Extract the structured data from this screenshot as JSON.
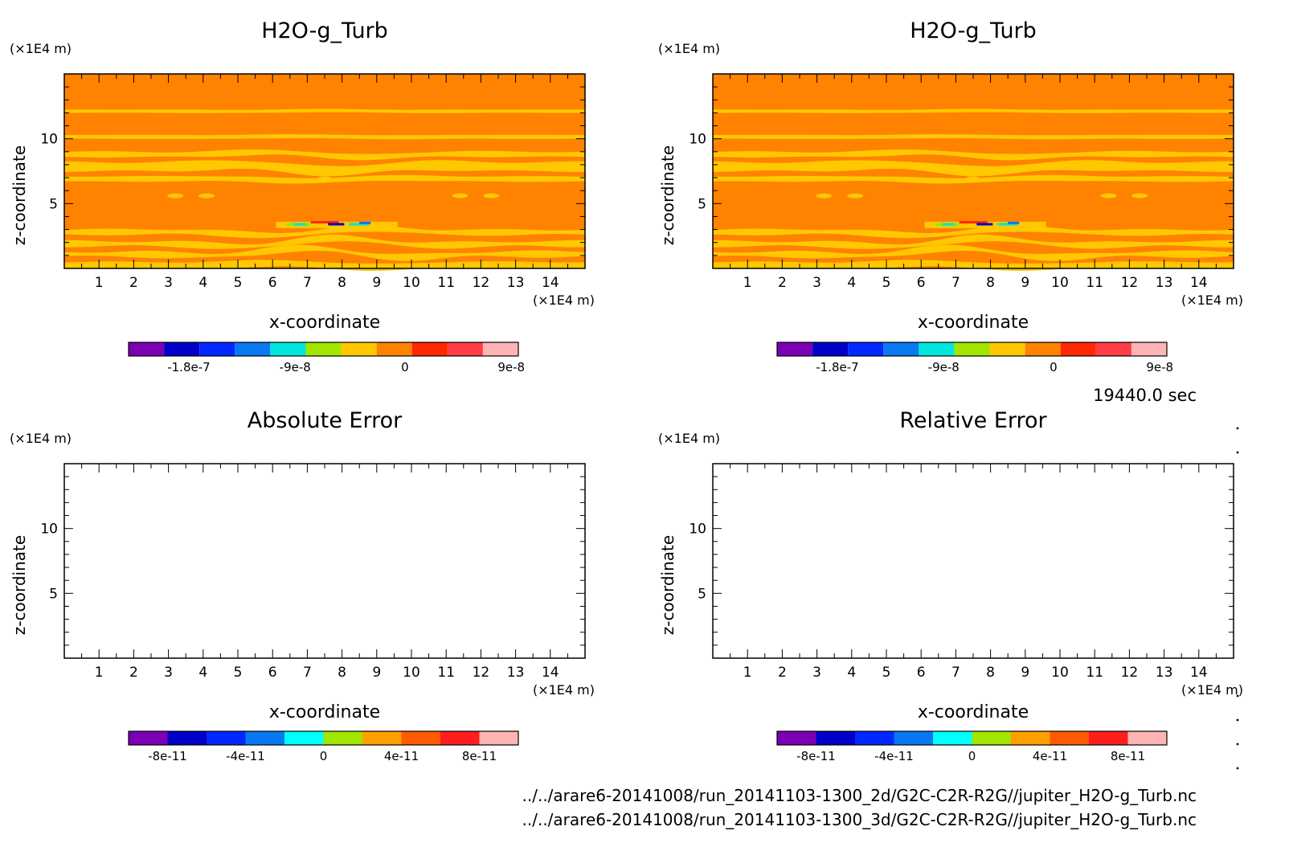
{
  "time_label": "19440.0 sec",
  "file_paths": [
    "../../arare6-20141008/run_20141103-1300_2d/G2C-C2R-R2G//jupiter_H2O-g_Turb.nc",
    "../../arare6-20141008/run_20141103-1300_3d/G2C-C2R-R2G//jupiter_H2O-g_Turb.nc"
  ],
  "chart_data": [
    {
      "type": "heatmap",
      "title": "H2O-g_Turb",
      "xlabel": "x-coordinate",
      "ylabel": "z-coordinate",
      "x_unit": "(×1E4 m)",
      "y_unit": "(×1E4 m)",
      "x_ticks": [
        1,
        2,
        3,
        4,
        5,
        6,
        7,
        8,
        9,
        10,
        11,
        12,
        13,
        14
      ],
      "y_ticks": [
        5,
        10
      ],
      "xlim": [
        0,
        15
      ],
      "ylim": [
        0,
        15
      ],
      "background_level": "0 to 2.25e-8",
      "colorbar": {
        "colors": [
          "#7b00b4",
          "#0000c8",
          "#0028ff",
          "#0a78f0",
          "#00e6dc",
          "#a0e600",
          "#ffc800",
          "#ff8200",
          "#ff2800",
          "#ff3c46",
          "#ffb4b4"
        ],
        "tick_labels": [
          "-1.8e-7",
          "-9e-8",
          "0",
          "9e-8"
        ]
      }
    },
    {
      "type": "heatmap",
      "title": "H2O-g_Turb",
      "xlabel": "x-coordinate",
      "ylabel": "z-coordinate",
      "x_unit": "(×1E4 m)",
      "y_unit": "(×1E4 m)",
      "x_ticks": [
        1,
        2,
        3,
        4,
        5,
        6,
        7,
        8,
        9,
        10,
        11,
        12,
        13,
        14
      ],
      "y_ticks": [
        5,
        10
      ],
      "xlim": [
        0,
        15
      ],
      "ylim": [
        0,
        15
      ],
      "background_level": "0 to 2.25e-8",
      "colorbar": {
        "colors": [
          "#7b00b4",
          "#0000c8",
          "#0028ff",
          "#0a78f0",
          "#00e6dc",
          "#a0e600",
          "#ffc800",
          "#ff8200",
          "#ff2800",
          "#ff3c46",
          "#ffb4b4"
        ],
        "tick_labels": [
          "-1.8e-7",
          "-9e-8",
          "0",
          "9e-8"
        ]
      }
    },
    {
      "type": "heatmap",
      "title": "Absolute Error",
      "xlabel": "x-coordinate",
      "ylabel": "z-coordinate",
      "x_unit": "(×1E4 m)",
      "y_unit": "(×1E4 m)",
      "x_ticks": [
        1,
        2,
        3,
        4,
        5,
        6,
        7,
        8,
        9,
        10,
        11,
        12,
        13,
        14
      ],
      "y_ticks": [
        5,
        10
      ],
      "xlim": [
        0,
        15
      ],
      "ylim": [
        0,
        15
      ],
      "values": "empty",
      "colorbar": {
        "colors": [
          "#7b00b4",
          "#0000c8",
          "#0028ff",
          "#0a78f0",
          "#00ffff",
          "#a0e600",
          "#ffa000",
          "#ff5a00",
          "#ff1e1e",
          "#ffb4b4"
        ],
        "tick_labels": [
          "-8e-11",
          "-4e-11",
          "0",
          "4e-11",
          "8e-11"
        ]
      }
    },
    {
      "type": "heatmap",
      "title": "Relative Error",
      "xlabel": "x-coordinate",
      "ylabel": "z-coordinate",
      "x_unit": "(×1E4 m)",
      "y_unit": "(×1E4 m)",
      "x_ticks": [
        1,
        2,
        3,
        4,
        5,
        6,
        7,
        8,
        9,
        10,
        11,
        12,
        13,
        14
      ],
      "y_ticks": [
        5,
        10
      ],
      "xlim": [
        0,
        15
      ],
      "ylim": [
        0,
        15
      ],
      "values": "empty",
      "colorbar": {
        "colors": [
          "#7b00b4",
          "#0000c8",
          "#0028ff",
          "#0a78f0",
          "#00ffff",
          "#a0e600",
          "#ffa000",
          "#ff5a00",
          "#ff1e1e",
          "#ffb4b4"
        ],
        "tick_labels": [
          "-8e-11",
          "-4e-11",
          "0",
          "4e-11",
          "8e-11"
        ]
      }
    }
  ]
}
